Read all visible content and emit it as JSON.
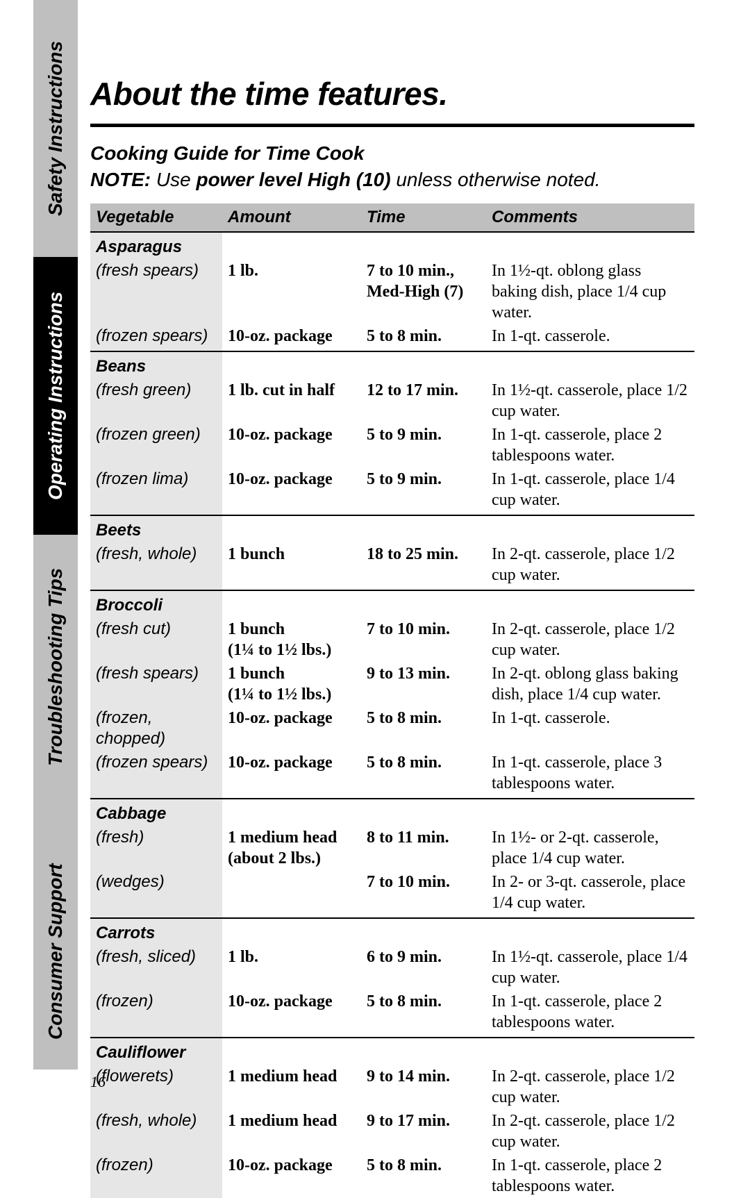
{
  "page_number": "16",
  "sidebar_tabs": {
    "safety": "Safety Instructions",
    "operating": "Operating Instructions",
    "troubleshooting": "Troubleshooting Tips",
    "consumer": "Consumer Support"
  },
  "title": "About the time features.",
  "subtitle": "Cooking Guide for Time Cook",
  "note_prefix": "NOTE:",
  "note_mid1": " Use ",
  "note_bold": "power level High (10)",
  "note_mid2": " unless otherwise noted.",
  "columns": {
    "veg": "Vegetable",
    "amt": "Amount",
    "time": "Time",
    "comm": "Comments"
  },
  "groups": [
    {
      "name": "Asparagus",
      "rows": [
        {
          "variant": "(fresh spears)",
          "amount": "1 lb.",
          "time": "7 to 10 min.,\nMed-High (7)",
          "comment": "In 1½-qt. oblong glass baking dish, place 1/4 cup water."
        },
        {
          "variant": "(frozen spears)",
          "amount": "10-oz. package",
          "time": "5 to 8 min.",
          "comment": "In 1-qt. casserole."
        }
      ]
    },
    {
      "name": "Beans",
      "rows": [
        {
          "variant": "(fresh green)",
          "amount": "1 lb. cut in half",
          "time": "12 to 17 min.",
          "comment": "In 1½-qt. casserole, place 1/2 cup water."
        },
        {
          "variant": "(frozen green)",
          "amount": "10-oz. package",
          "time": "5 to 9 min.",
          "comment": "In 1-qt. casserole, place 2 tablespoons water."
        },
        {
          "variant": "(frozen lima)",
          "amount": "10-oz. package",
          "time": "5 to 9 min.",
          "comment": "In 1-qt. casserole, place 1/4 cup water."
        }
      ]
    },
    {
      "name": "Beets",
      "rows": [
        {
          "variant": "(fresh, whole)",
          "amount": "1 bunch",
          "time": "18 to 25 min.",
          "comment": "In 2-qt. casserole, place 1/2 cup water."
        }
      ]
    },
    {
      "name": "Broccoli",
      "rows": [
        {
          "variant": "(fresh cut)",
          "amount": "1 bunch\n(1¼ to 1½ lbs.)",
          "time": "7 to 10 min.",
          "comment": "In 2-qt. casserole, place 1/2 cup water."
        },
        {
          "variant": "(fresh spears)",
          "amount": "1 bunch\n(1¼ to 1½ lbs.)",
          "time": "9 to 13 min.",
          "comment": "In 2-qt. oblong glass baking dish, place 1/4 cup water."
        },
        {
          "variant": "(frozen, chopped)",
          "amount": "10-oz. package",
          "time": "5 to 8 min.",
          "comment": "In 1-qt. casserole."
        },
        {
          "variant": "(frozen spears)",
          "amount": "10-oz. package",
          "time": "5 to 8 min.",
          "comment": "In 1-qt. casserole, place 3 tablespoons water."
        }
      ]
    },
    {
      "name": "Cabbage",
      "rows": [
        {
          "variant": "(fresh)",
          "amount": "1 medium head (about 2 lbs.)",
          "time": "8 to 11 min.",
          "comment": "In 1½- or 2-qt. casserole, place 1/4 cup water."
        },
        {
          "variant": "(wedges)",
          "amount": "",
          "time": "7 to 10 min.",
          "comment": "In 2- or 3-qt. casserole, place 1/4 cup water."
        }
      ]
    },
    {
      "name": "Carrots",
      "rows": [
        {
          "variant": "(fresh, sliced)",
          "amount": "1 lb.",
          "time": "6 to 9 min.",
          "comment": "In 1½-qt. casserole, place 1/4 cup water."
        },
        {
          "variant": "(frozen)",
          "amount": "10-oz. package",
          "time": "5 to 8 min.",
          "comment": "In 1-qt. casserole, place 2 tablespoons water."
        }
      ]
    },
    {
      "name": "Cauliflower",
      "rows": [
        {
          "variant": "(flowerets)",
          "amount": "1 medium head",
          "time": "9 to 14 min.",
          "comment": "In 2-qt. casserole, place 1/2 cup water."
        },
        {
          "variant": "(fresh, whole)",
          "amount": "1 medium head",
          "time": "9 to 17 min.",
          "comment": "In 2-qt. casserole, place 1/2 cup water."
        },
        {
          "variant": "(frozen)",
          "amount": "10-oz. package",
          "time": "5 to 8 min.",
          "comment": "In 1-qt. casserole, place 2 tablespoons water."
        }
      ]
    }
  ]
}
